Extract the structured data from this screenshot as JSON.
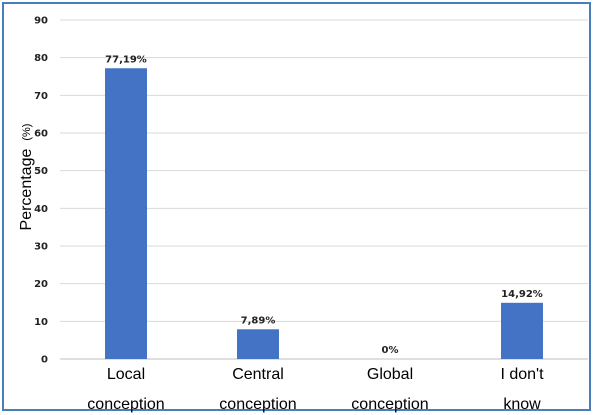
{
  "chart_data": {
    "type": "bar",
    "categories": [
      [
        "Local",
        "conception"
      ],
      [
        "Central",
        "conception"
      ],
      [
        "Global",
        "conception"
      ],
      [
        "I don't",
        "know"
      ]
    ],
    "values": [
      77.19,
      7.89,
      0,
      14.92
    ],
    "data_labels": [
      "77,19%",
      "7,89%",
      "0%",
      "14,92%"
    ],
    "title": "",
    "xlabel": "",
    "ylabel": "Percentage",
    "ylabel_unit": "(%)",
    "ylim": [
      0,
      90
    ],
    "yticks": [
      0,
      10,
      20,
      30,
      40,
      50,
      60,
      70,
      80,
      90
    ],
    "grid": true,
    "bar_color": "#4472c4",
    "grid_color": "#d9d9d9",
    "frame_color": "#4a7ebb"
  }
}
